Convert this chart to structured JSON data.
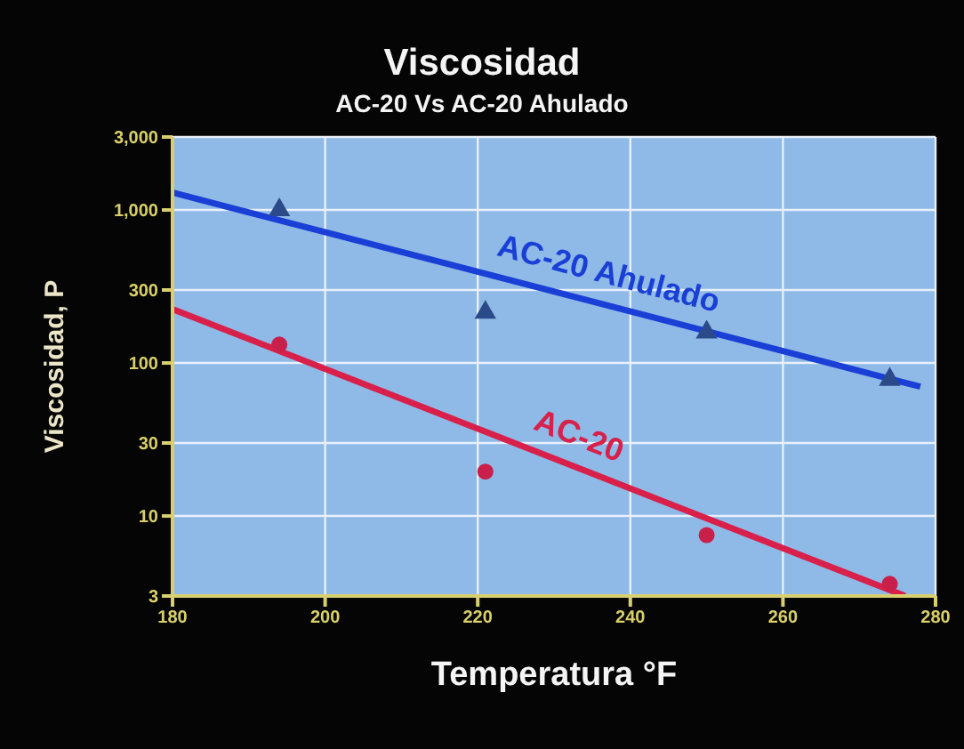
{
  "chart_data": {
    "type": "scatter",
    "title": "Viscosidad",
    "subtitle": "AC-20 Vs AC-20 Ahulado",
    "xlabel": "Temperatura °F",
    "ylabel": "Viscosidad, P",
    "series": [
      {
        "type": "line",
        "name": "AC-20 Ahulado",
        "color": "#1a3fd6",
        "x": [
          180,
          278
        ],
        "values": [
          1300,
          70
        ],
        "marker": "none"
      },
      {
        "type": "line",
        "name": "AC-20",
        "color": "#d8204a",
        "x": [
          180,
          276
        ],
        "values": [
          225,
          3
        ],
        "marker": "none"
      },
      {
        "color": "#2a4a8a",
        "x": [
          194,
          221,
          250,
          274
        ],
        "values": [
          1000,
          214,
          159,
          78
        ],
        "marker": "triangle"
      },
      {
        "color": "#c8204a",
        "x": [
          194,
          221,
          250,
          274
        ],
        "values": [
          132,
          19.5,
          7.5,
          3.6
        ],
        "marker": "circle"
      }
    ],
    "xlim": [
      180,
      280
    ],
    "xticks": [
      180,
      200,
      220,
      240,
      260,
      280
    ],
    "ylim": [
      3,
      3000
    ],
    "yticks": [
      3,
      10,
      30,
      100,
      300,
      {
        "value": 1000,
        "label": "1,000"
      },
      {
        "value": 3000,
        "label": "3,000"
      }
    ],
    "log": "y",
    "grid": true,
    "legend": false
  }
}
